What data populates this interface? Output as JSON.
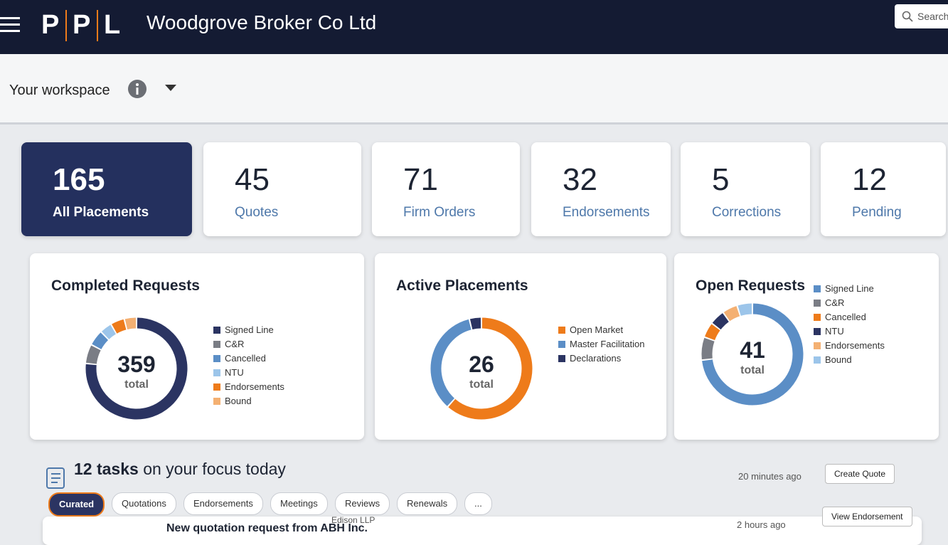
{
  "header": {
    "logo": [
      "P",
      "P",
      "L"
    ],
    "company": "Woodgrove Broker Co Ltd",
    "search_placeholder": "Search"
  },
  "workspace": {
    "label": "Your workspace"
  },
  "stats": [
    {
      "value": 165,
      "label": "All Placements"
    },
    {
      "value": 45,
      "label": "Quotes"
    },
    {
      "value": 71,
      "label": "Firm Orders"
    },
    {
      "value": 32,
      "label": "Endorsements"
    },
    {
      "value": 5,
      "label": "Corrections"
    },
    {
      "value": 12,
      "label": "Pending"
    }
  ],
  "donuts": [
    {
      "title": "Completed Requests",
      "total": 359,
      "total_label": "total",
      "segments": [
        {
          "name": "Signed Line",
          "color": "#2b3462",
          "value": 275
        },
        {
          "name": "C&R",
          "color": "#7a7d85",
          "value": 22
        },
        {
          "name": "Cancelled",
          "color": "#5b8ec6",
          "value": 18
        },
        {
          "name": "NTU",
          "color": "#9cc5ea",
          "value": 14
        },
        {
          "name": "Endorsements",
          "color": "#ee7b1a",
          "value": 16
        },
        {
          "name": "Bound",
          "color": "#f4b072",
          "value": 14
        }
      ]
    },
    {
      "title": "Active Placements",
      "total": 26,
      "total_label": "total",
      "segments": [
        {
          "name": "Open Market",
          "color": "#ee7b1a",
          "value": 16
        },
        {
          "name": "Master Facilitation",
          "color": "#5b8ec6",
          "value": 9
        },
        {
          "name": "Declarations",
          "color": "#2b3462",
          "value": 1
        }
      ]
    },
    {
      "title": "Open Requests",
      "total": 41,
      "total_label": "total",
      "segments": [
        {
          "name": "Signed Line",
          "color": "#5b8ec6",
          "value": 30
        },
        {
          "name": "C&R",
          "color": "#7a7d85",
          "value": 3
        },
        {
          "name": "Cancelled",
          "color": "#ee7b1a",
          "value": 2
        },
        {
          "name": "NTU",
          "color": "#2b3462",
          "value": 2
        },
        {
          "name": "Endorsements",
          "color": "#f4b072",
          "value": 2
        },
        {
          "name": "Bound",
          "color": "#9cc5ea",
          "value": 2
        }
      ]
    }
  ],
  "tasks": {
    "count": "12 tasks",
    "rest": "on your focus today",
    "filters": [
      "Curated",
      "Quotations",
      "Endorsements",
      "Meetings",
      "Reviews",
      "Renewals",
      "..."
    ],
    "items": [
      {
        "time": "20 minutes ago",
        "action": "Create Quote"
      },
      {
        "title": "New quotation request from ABH Inc.",
        "client": "Edison LLP",
        "time": "2 hours ago",
        "action": "View Endorsement"
      }
    ]
  }
}
